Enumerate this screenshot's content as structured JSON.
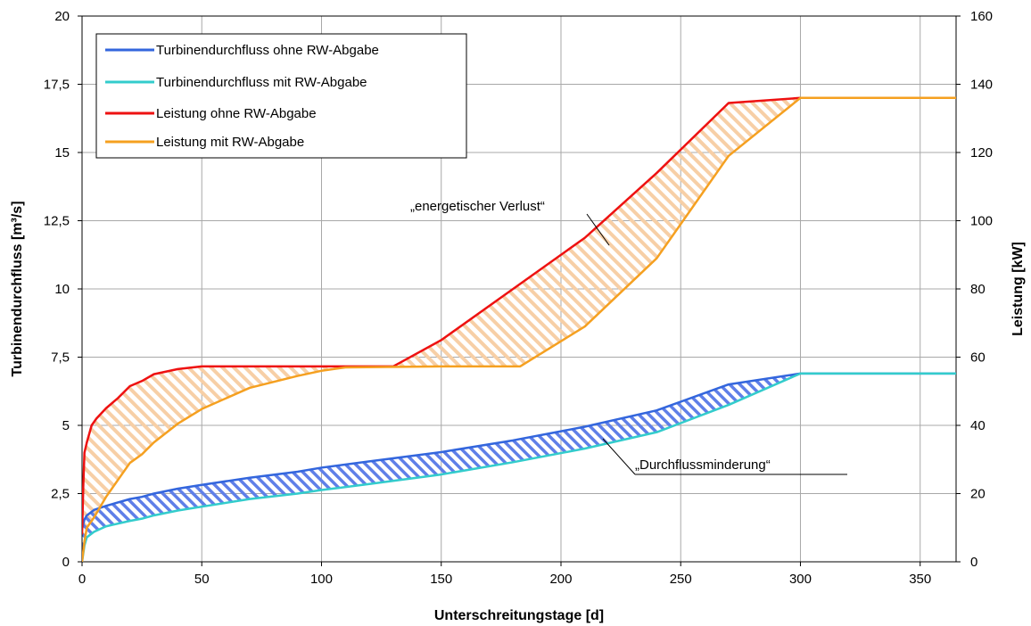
{
  "chart_data": {
    "type": "line",
    "xlabel": "Unterschreitungstage [d]",
    "ylabel_left": "Turbinendurchfluss [m³/s]",
    "ylabel_right": "Leistung [kW]",
    "xlim": [
      0,
      365
    ],
    "ylim_left": [
      0,
      20
    ],
    "ylim_right": [
      0,
      160
    ],
    "x_ticks": [
      0,
      50,
      100,
      150,
      200,
      250,
      300,
      350
    ],
    "x_tick_labels": [
      "0",
      "50",
      "100",
      "150",
      "200",
      "250",
      "300",
      "350"
    ],
    "y_left_ticks": [
      0,
      2.5,
      5,
      7.5,
      10,
      12.5,
      15,
      17.5,
      20
    ],
    "y_left_tick_labels": [
      "0",
      "2,5",
      "5",
      "7,5",
      "10",
      "12,5",
      "15",
      "17,5",
      "20"
    ],
    "y_right_ticks": [
      0,
      20,
      40,
      60,
      80,
      100,
      120,
      140,
      160
    ],
    "y_right_tick_labels": [
      "0",
      "20",
      "40",
      "60",
      "80",
      "100",
      "120",
      "140",
      "160"
    ],
    "grid": true,
    "legend_position": "top-left",
    "series": [
      {
        "name": "Turbinendurchfluss ohne RW-Abgabe",
        "axis": "left",
        "color": "#3366dd",
        "x": [
          0,
          1,
          2,
          5,
          10,
          20,
          25,
          30,
          40,
          50,
          70,
          90,
          100,
          120,
          150,
          180,
          210,
          240,
          270,
          300,
          365
        ],
        "y": [
          1.2,
          1.55,
          1.7,
          1.9,
          2.05,
          2.3,
          2.38,
          2.5,
          2.68,
          2.82,
          3.08,
          3.3,
          3.45,
          3.68,
          4.02,
          4.45,
          4.95,
          5.55,
          6.5,
          6.9,
          6.9
        ]
      },
      {
        "name": "Turbinendurchfluss mit RW-Abgabe",
        "axis": "left",
        "color": "#33cccc",
        "x": [
          0,
          1,
          2,
          5,
          10,
          20,
          25,
          30,
          40,
          50,
          70,
          90,
          100,
          120,
          150,
          180,
          210,
          240,
          270,
          300,
          365
        ],
        "y": [
          0,
          0.6,
          0.9,
          1.1,
          1.3,
          1.5,
          1.58,
          1.7,
          1.88,
          2.02,
          2.3,
          2.5,
          2.63,
          2.85,
          3.2,
          3.65,
          4.15,
          4.75,
          5.75,
          6.9,
          6.9
        ]
      },
      {
        "name": "Leistung ohne RW-Abgabe",
        "axis": "right",
        "color": "#ee1111",
        "x": [
          0,
          0.5,
          1,
          2,
          4,
          6,
          10,
          15,
          20,
          25,
          30,
          40,
          50,
          70,
          100,
          130,
          150,
          180,
          210,
          240,
          270,
          300,
          365
        ],
        "y": [
          8,
          22,
          32,
          35,
          40,
          42,
          45,
          48,
          51.5,
          53,
          55,
          56.5,
          57.3,
          57.3,
          57.3,
          57.3,
          65,
          80,
          95,
          114,
          134.5,
          136,
          136
        ]
      },
      {
        "name": "Leistung mit RW-Abgabe",
        "axis": "right",
        "color": "#f5a020",
        "x": [
          0,
          1,
          2,
          5,
          10,
          20,
          25,
          30,
          40,
          50,
          70,
          90,
          100,
          110,
          150,
          183,
          210,
          240,
          270,
          300,
          365
        ],
        "y": [
          0,
          6,
          10,
          13,
          19,
          29,
          31.5,
          35,
          40.5,
          44.8,
          51,
          54.5,
          56,
          57,
          57.3,
          57.3,
          69,
          89,
          119,
          136,
          136
        ]
      }
    ],
    "annotations": [
      {
        "text": "„energetischer Verlust“"
      },
      {
        "text": "„Durchflussminderung“"
      }
    ],
    "hatch_colors": {
      "power_loss": "#f5c79a",
      "flow_reduction": "#5a78e0"
    }
  }
}
